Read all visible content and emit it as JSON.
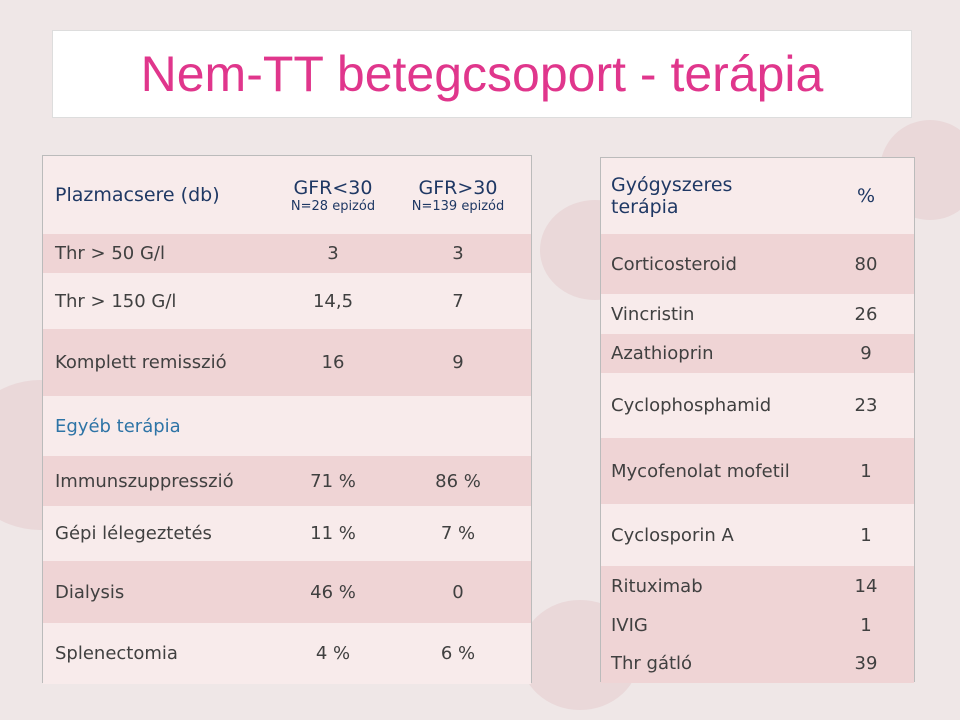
{
  "title": "Nem-TT betegcsoport - terápia",
  "left_table": {
    "header": [
      {
        "title": "Plazmacsere (db)"
      },
      {
        "title": "GFR<30",
        "subtitle": "N=28 epizód"
      },
      {
        "title": "GFR>30",
        "subtitle": "N=139 epizód"
      }
    ],
    "rows": [
      [
        "Thr > 50 G/l",
        3,
        3
      ],
      [
        "Thr > 150 G/l",
        "14,5",
        7
      ],
      [
        "Komplett remisszió",
        16,
        9
      ],
      [
        "Egyéb terápia"
      ],
      [
        "Immunszuppresszió",
        "71 %",
        "86 %"
      ],
      [
        "Gépi lélegeztetés",
        "11 %",
        "7 %"
      ],
      [
        "Dialysis",
        "46 %",
        0
      ],
      [
        "Splenectomia",
        "4 %",
        "6 %"
      ]
    ]
  },
  "right_table": {
    "header": [
      "Gyógyszeres terápia",
      "%"
    ],
    "rows": [
      [
        "Corticosteroid",
        80
      ],
      [
        "Vincristin",
        26
      ],
      [
        "Azathioprin",
        9
      ],
      [
        "Cyclophosphamid",
        23
      ],
      [
        "Mycofenolat mofetil",
        1
      ],
      [
        "Cyclosporin A",
        1
      ],
      [
        "Rituximab",
        14
      ],
      [
        "IVIG",
        1
      ],
      [
        "Thr gátló",
        39
      ]
    ]
  }
}
